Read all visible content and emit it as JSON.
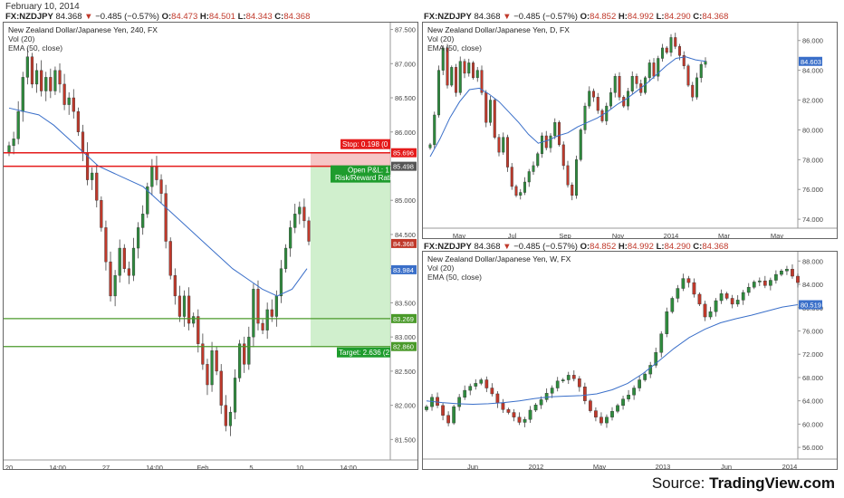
{
  "date_header": "February 10, 2014",
  "source": {
    "prefix": "Source: ",
    "brand": "TradingView.com"
  },
  "colors": {
    "up": "#2e8b3d",
    "down": "#c0392b",
    "ema": "#3a6fc9",
    "stop": "#e51b1b",
    "target": "#4a9a2a",
    "entry": "#c0392b"
  },
  "chart_data": [
    {
      "type": "candlestick",
      "symbol": "FX:NZDJPY",
      "quote": {
        "last": "84.368",
        "change": "−0.485 (−0.57%)",
        "o": "84.473",
        "h": "84.501",
        "l": "84.343",
        "c": "84.368"
      },
      "title": "New Zealand Dollar/Japanese Yen, 240, FX",
      "study1": "Vol (20)",
      "study2_prefix": "EMA (",
      "study2_mid": "50",
      "study2_suffix": ", close)",
      "ylim": [
        81.2,
        87.6
      ],
      "yticks": [
        81.5,
        82.0,
        82.5,
        83.0,
        83.5,
        84.0,
        84.5,
        85.0,
        85.5,
        86.0,
        86.5,
        87.0,
        87.5
      ],
      "ytick_labels": [
        "81.500",
        "82.000",
        "82.500",
        "83.000",
        "83.500",
        "84.000",
        "84.500",
        "85.000",
        "85.500",
        "86.000",
        "86.500",
        "87.000",
        "87.500"
      ],
      "xticks": [
        "20",
        "14:00",
        "27",
        "14:00",
        "Feb",
        "5",
        "10",
        "14:00"
      ],
      "closes": [
        85.8,
        85.9,
        86.3,
        86.8,
        87.1,
        86.7,
        86.9,
        86.6,
        86.8,
        86.6,
        86.9,
        86.7,
        86.4,
        86.5,
        86.3,
        86.0,
        85.7,
        85.3,
        85.4,
        85.0,
        84.6,
        84.1,
        83.6,
        83.9,
        84.3,
        84.0,
        83.9,
        84.3,
        84.6,
        84.8,
        85.2,
        85.5,
        85.3,
        85.1,
        84.4,
        83.9,
        83.6,
        83.3,
        83.6,
        83.2,
        83.3,
        82.9,
        82.6,
        82.3,
        82.8,
        82.5,
        82.0,
        81.7,
        81.9,
        82.4,
        82.9,
        82.6,
        83.0,
        83.7,
        83.2,
        83.1,
        83.4,
        83.3,
        83.6,
        84.0,
        84.3,
        84.6,
        84.8,
        84.9,
        84.7,
        84.4
      ],
      "ema": [
        86.35,
        86.3,
        86.25,
        86.1,
        85.9,
        85.7,
        85.5,
        85.4,
        85.3,
        85.2,
        85.0,
        84.8,
        84.6,
        84.4,
        84.2,
        84.0,
        83.85,
        83.7,
        83.6,
        83.7,
        84.0
      ],
      "levels": [
        {
          "name": "stop",
          "value": 85.696,
          "label": "85.696",
          "tag": "Stop: 0.198 (0"
        },
        {
          "name": "entry",
          "value": 85.498,
          "label": "85.498",
          "tag_line1": "Open P&L: 1",
          "tag_line2": "Risk/Reward Rati"
        },
        {
          "name": "current",
          "value": 84.368,
          "label": "84.368"
        },
        {
          "name": "ema-last",
          "value": 83.984,
          "label": "83.984"
        },
        {
          "name": "support",
          "value": 83.269,
          "label": "83.269"
        },
        {
          "name": "target",
          "value": 82.86,
          "label": "82.860",
          "tag": "Target: 2.636 (2"
        }
      ]
    },
    {
      "type": "candlestick",
      "symbol": "FX:NZDJPY",
      "quote": {
        "last": "84.368",
        "change": "−0.485 (−0.57%)",
        "o": "84.852",
        "h": "84.992",
        "l": "84.290",
        "c": "84.368"
      },
      "title": "New Zealand Dollar/Japanese Yen, D, FX",
      "study1": "Vol (20)",
      "study2": "EMA (50, close)",
      "ylim": [
        73.4,
        87.2
      ],
      "yticks": [
        74,
        76,
        78,
        80,
        82,
        84,
        86
      ],
      "ytick_labels": [
        "74.000",
        "76.000",
        "78.000",
        "80.000",
        "82.000",
        "84.000",
        "86.000"
      ],
      "last_label": "84.603",
      "last_value": 84.6,
      "xticks": [
        "May",
        "Jul",
        "Sep",
        "Nov",
        "2014",
        "Mar",
        "May"
      ],
      "closes": [
        79.0,
        81.0,
        84.0,
        85.5,
        83.0,
        84.2,
        82.5,
        84.6,
        83.8,
        84.5,
        83.5,
        84.0,
        82.5,
        80.5,
        82.0,
        79.5,
        78.5,
        79.5,
        77.5,
        76.2,
        75.6,
        75.8,
        76.5,
        77.2,
        77.6,
        78.4,
        79.6,
        78.8,
        79.6,
        80.5,
        79.0,
        77.6,
        76.3,
        75.6,
        78.0,
        80.0,
        81.6,
        82.6,
        82.2,
        81.3,
        80.6,
        81.6,
        82.5,
        83.6,
        82.2,
        81.6,
        82.6,
        83.6,
        83.1,
        82.5,
        83.5,
        84.5,
        83.6,
        84.8,
        85.5,
        85.2,
        86.2,
        85.6,
        85.0,
        84.3,
        83.0,
        82.2,
        83.5,
        84.4,
        84.6
      ],
      "ema": [
        78.2,
        79.4,
        80.8,
        81.9,
        82.7,
        82.8,
        82.4,
        81.9,
        81.2,
        80.5,
        79.7,
        79.1,
        79.3,
        79.6,
        79.8,
        80.2,
        80.5,
        80.8,
        81.2,
        81.7,
        82.1,
        82.6,
        83.1,
        83.7,
        84.3,
        84.8,
        84.9,
        84.7,
        84.6
      ]
    },
    {
      "type": "candlestick",
      "symbol": "FX:NZDJPY",
      "quote": {
        "last": "84.368",
        "change": "−0.485 (−0.57%)",
        "o": "84.852",
        "h": "84.992",
        "l": "84.290",
        "c": "84.368"
      },
      "title": "New Zealand Dollar/Japanese Yen, W, FX",
      "study1": "Vol (20)",
      "study2": "EMA (50, close)",
      "ylim": [
        54.0,
        89.6
      ],
      "yticks": [
        56,
        60,
        64,
        68,
        72,
        76,
        80,
        84,
        88
      ],
      "ytick_labels": [
        "56.000",
        "60.000",
        "64.000",
        "68.000",
        "72.000",
        "76.000",
        "80.000",
        "84.000",
        "88.000"
      ],
      "last_label": "80.519",
      "last_value": 80.5,
      "xticks": [
        "Jun",
        "2012",
        "May",
        "2013",
        "Jun",
        "2014"
      ],
      "closes": [
        63.0,
        64.6,
        63.2,
        61.5,
        60.2,
        63.0,
        64.6,
        65.8,
        66.5,
        67.0,
        67.6,
        66.2,
        65.2,
        63.6,
        62.5,
        62.0,
        61.2,
        60.3,
        60.8,
        62.4,
        63.3,
        64.2,
        65.3,
        66.2,
        67.4,
        67.6,
        68.4,
        67.8,
        66.4,
        64.0,
        62.3,
        61.2,
        60.2,
        61.2,
        62.2,
        63.2,
        64.3,
        65.0,
        66.2,
        67.6,
        68.6,
        70.1,
        72.3,
        75.5,
        79.3,
        81.6,
        83.3,
        85.0,
        84.3,
        82.3,
        80.6,
        78.4,
        79.3,
        81.2,
        82.4,
        81.6,
        80.6,
        81.3,
        82.6,
        83.5,
        84.4,
        84.6,
        83.8,
        84.7,
        85.7,
        86.3,
        86.6,
        85.4,
        84.3
      ],
      "ema": [
        64.0,
        63.7,
        63.5,
        63.4,
        63.5,
        63.7,
        64.0,
        64.4,
        64.7,
        64.8,
        64.9,
        65.2,
        65.9,
        67.0,
        68.7,
        70.8,
        73.0,
        74.9,
        76.3,
        77.4,
        78.1,
        78.7,
        79.4,
        80.1,
        80.5
      ]
    }
  ]
}
